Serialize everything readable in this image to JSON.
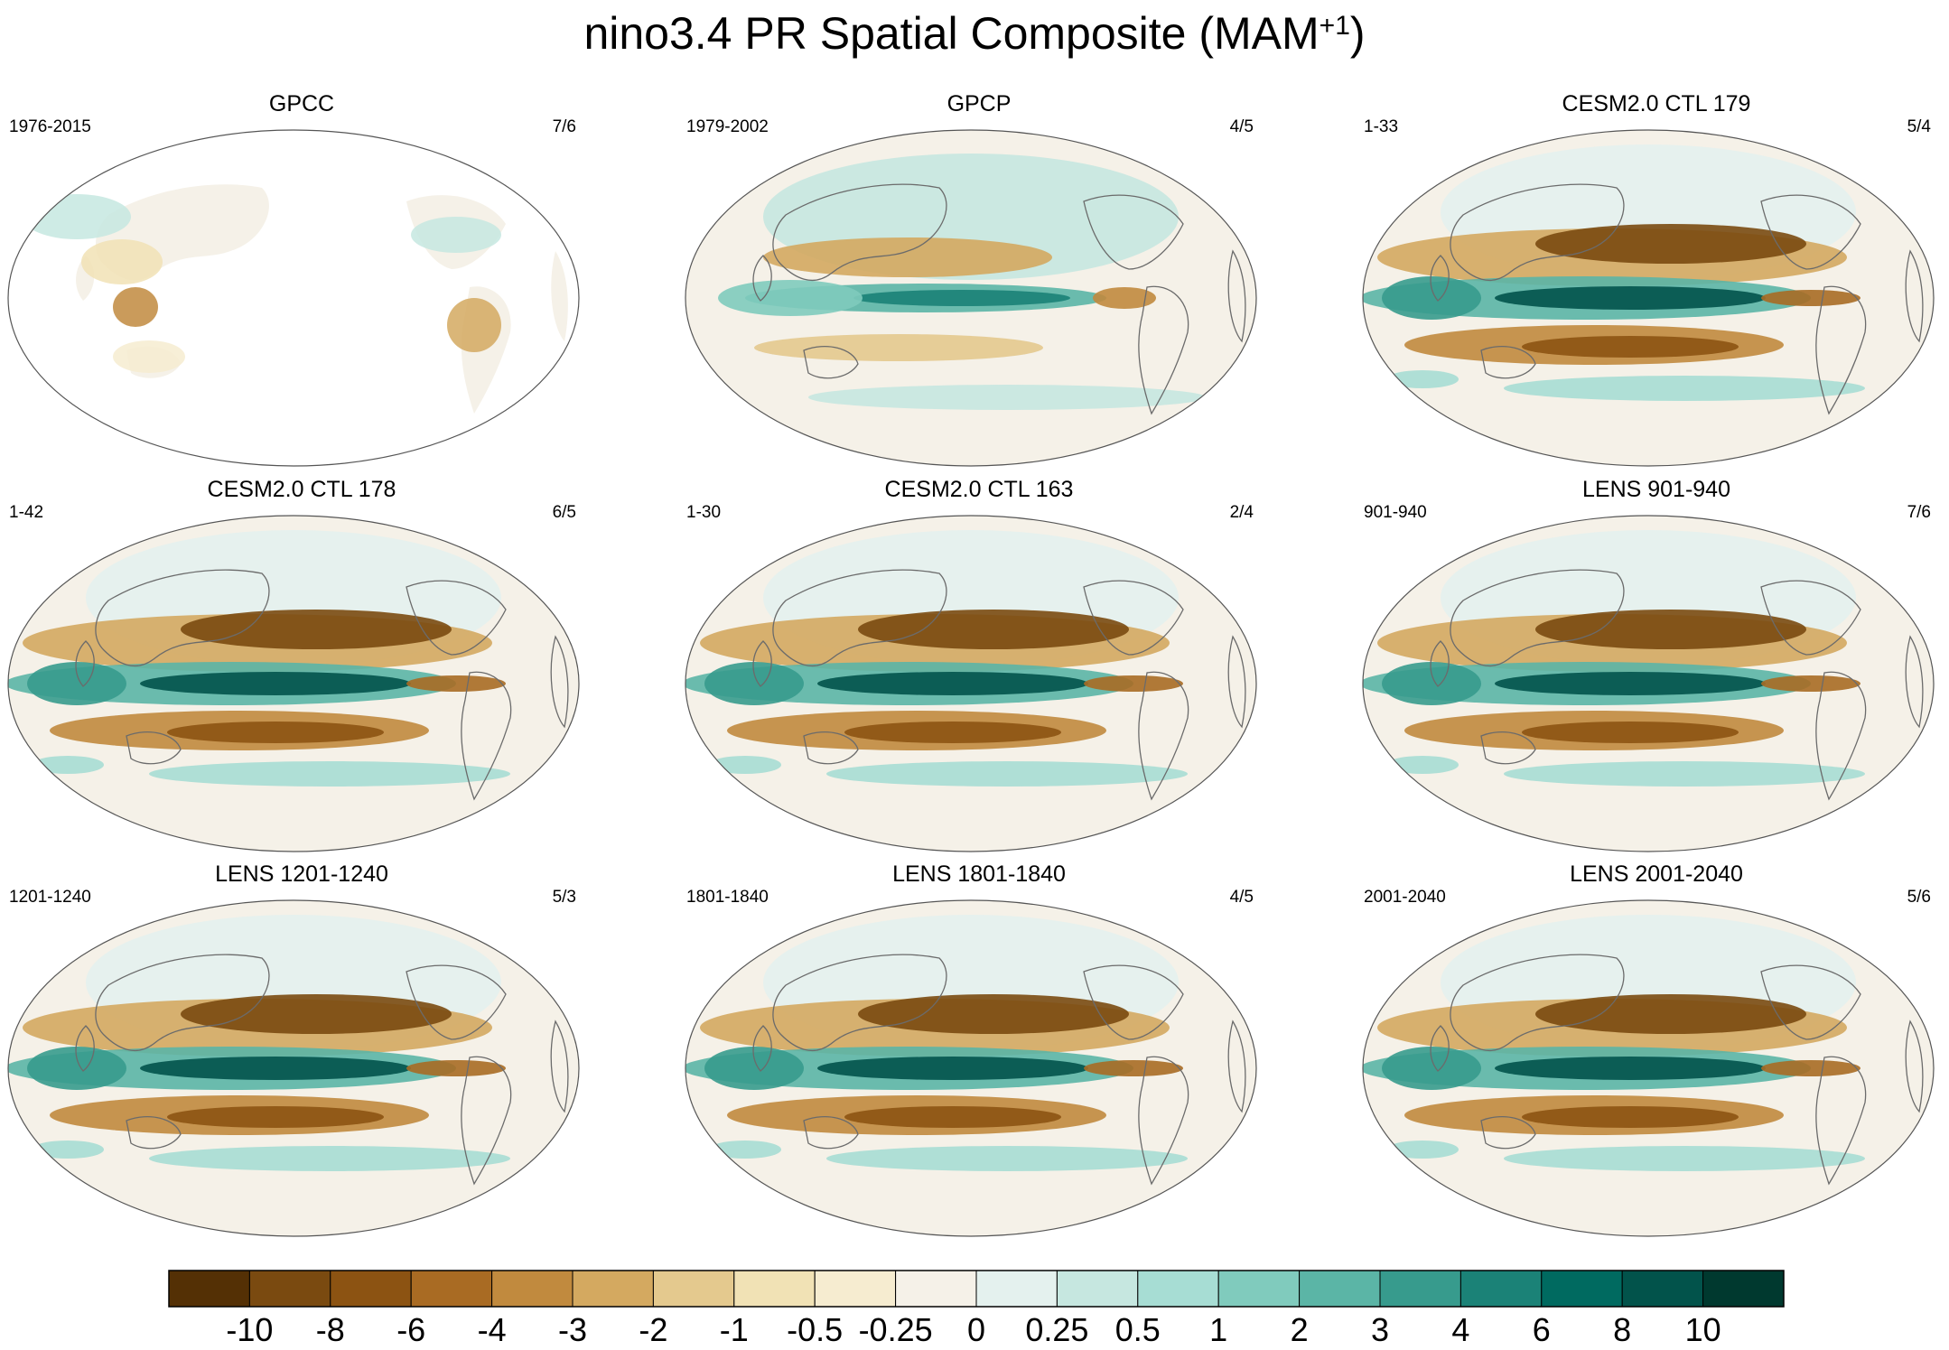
{
  "chart_data": {
    "type": "heatmap",
    "title": "nino3.4 PR Spatial Composite (MAM",
    "title_superscript": "+1",
    "title_close": ")",
    "colorbar": {
      "labels": [
        "-10",
        "-8",
        "-6",
        "-4",
        "-3",
        "-2",
        "-1",
        "-0.5",
        "-0.25",
        "0",
        "0.25",
        "0.5",
        "1",
        "2",
        "3",
        "4",
        "6",
        "8",
        "10"
      ],
      "colors": [
        "#543005",
        "#7a4a10",
        "#8c5312",
        "#a96b23",
        "#c18a3e",
        "#d4a960",
        "#e4c98e",
        "#f1e2b5",
        "#f6ecd0",
        "#f5f1e8",
        "#e4f1ee",
        "#c6e7e0",
        "#a7ddd4",
        "#80cbbd",
        "#5bb5a6",
        "#379b8d",
        "#1b8277",
        "#006a60",
        "#02534b",
        "#00392f"
      ]
    },
    "panels": [
      {
        "title": "GPCC",
        "years": "1976-2015",
        "count": "7/6",
        "style": "obs-land"
      },
      {
        "title": "GPCP",
        "years": "1979-2002",
        "count": "4/5",
        "style": "weak"
      },
      {
        "title": "CESM2.0 CTL 179",
        "years": "1-33",
        "count": "5/4",
        "style": "strong"
      },
      {
        "title": "CESM2.0 CTL 178",
        "years": "1-42",
        "count": "6/5",
        "style": "strong"
      },
      {
        "title": "CESM2.0 CTL 163",
        "years": "1-30",
        "count": "2/4",
        "style": "strong"
      },
      {
        "title": "LENS 901-940",
        "years": "901-940",
        "count": "7/6",
        "style": "strong"
      },
      {
        "title": "LENS 1201-1240",
        "years": "1201-1240",
        "count": "5/3",
        "style": "strong"
      },
      {
        "title": "LENS 1801-1840",
        "years": "1801-1840",
        "count": "4/5",
        "style": "strong"
      },
      {
        "title": "LENS 2001-2040",
        "years": "2001-2040",
        "count": "5/6",
        "style": "strong"
      }
    ]
  }
}
